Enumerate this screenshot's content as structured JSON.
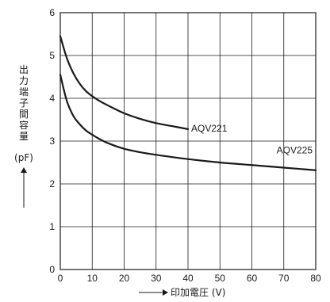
{
  "chart_data": {
    "type": "line",
    "xlabel": "印加電圧 (V)",
    "ylabel": "出力端子間容量 (pF)",
    "ylabel_main": "出力端子間容量",
    "ylabel_unit": "(pF)",
    "xlim": [
      0,
      80
    ],
    "ylim": [
      0,
      6
    ],
    "x_ticks": [
      "0",
      "10",
      "20",
      "30",
      "40",
      "50",
      "60",
      "70",
      "80"
    ],
    "y_ticks": [
      "0",
      "1",
      "2",
      "3",
      "4",
      "5",
      "6"
    ],
    "grid": true,
    "series": [
      {
        "name": "AQV221",
        "x": [
          0,
          2,
          4,
          6,
          8,
          10,
          12,
          15,
          20,
          25,
          30,
          35,
          40
        ],
        "y": [
          5.45,
          4.95,
          4.6,
          4.35,
          4.17,
          4.05,
          3.95,
          3.83,
          3.65,
          3.52,
          3.42,
          3.35,
          3.28
        ]
      },
      {
        "name": "AQV225",
        "x": [
          0,
          2,
          4,
          6,
          8,
          10,
          12,
          15,
          20,
          25,
          30,
          40,
          50,
          60,
          70,
          80
        ],
        "y": [
          4.55,
          3.95,
          3.6,
          3.4,
          3.25,
          3.15,
          3.06,
          2.95,
          2.82,
          2.74,
          2.68,
          2.58,
          2.5,
          2.44,
          2.38,
          2.32
        ]
      }
    ]
  },
  "colors": {
    "line": "#1a1a1a",
    "grid": "#1a1a1a",
    "background": "#ffffff"
  }
}
